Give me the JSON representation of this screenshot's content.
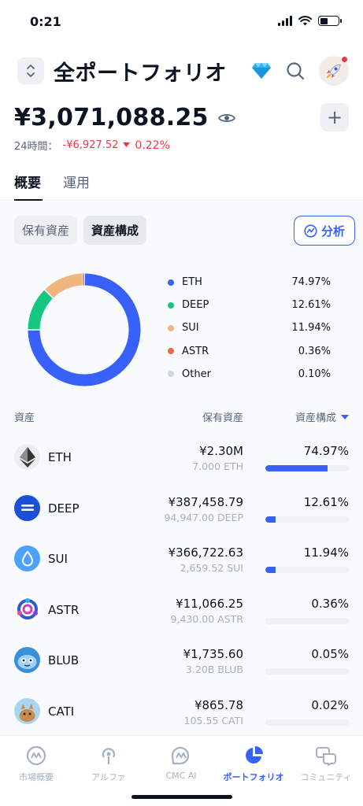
{
  "status": {
    "time": "0:21"
  },
  "header": {
    "title": "全ポートフォリオ"
  },
  "balance": {
    "amount": "¥3,071,088.25",
    "change_label": "24時間：",
    "change_value": "-¥6,927.52",
    "change_pct": "0.22%"
  },
  "tabs": [
    {
      "label": "概要"
    },
    {
      "label": "運用"
    }
  ],
  "segment": [
    {
      "label": "保有資産"
    },
    {
      "label": "資産構成"
    }
  ],
  "analyze_label": "分析",
  "colors": {
    "accent": "#3861fb",
    "negative": "#ea3943"
  },
  "chart_data": {
    "type": "pie",
    "categories": [
      "ETH",
      "DEEP",
      "SUI",
      "ASTR",
      "Other"
    ],
    "values": [
      74.97,
      12.61,
      11.94,
      0.36,
      0.1
    ],
    "labels": [
      "74.97%",
      "12.61%",
      "11.94%",
      "0.36%",
      "0.10%"
    ],
    "colors": [
      "#3861fb",
      "#16c784",
      "#f0b67e",
      "#ea6a47",
      "#cfd6e4"
    ]
  },
  "table": {
    "headers": {
      "asset": "資産",
      "holdings": "保有資産",
      "allocation": "資産構成"
    },
    "rows": [
      {
        "symbol": "ETH",
        "value": "¥2.30M",
        "holding": "7.000 ETH",
        "share": "74.97%",
        "share_num": 74.97,
        "icon": "eth-icon"
      },
      {
        "symbol": "DEEP",
        "value": "¥387,458.79",
        "holding": "94,947.00 DEEP",
        "share": "12.61%",
        "share_num": 12.61,
        "icon": "deep-icon"
      },
      {
        "symbol": "SUI",
        "value": "¥366,722.63",
        "holding": "2,659.52 SUI",
        "share": "11.94%",
        "share_num": 11.94,
        "icon": "sui-icon"
      },
      {
        "symbol": "ASTR",
        "value": "¥11,066.25",
        "holding": "9,430.00 ASTR",
        "share": "0.36%",
        "share_num": 0.36,
        "icon": "astr-icon"
      },
      {
        "symbol": "BLUB",
        "value": "¥1,735.60",
        "holding": "3.20B BLUB",
        "share": "0.05%",
        "share_num": 0.05,
        "icon": "blub-icon"
      },
      {
        "symbol": "CATI",
        "value": "¥865.78",
        "holding": "105.55 CATI",
        "share": "0.02%",
        "share_num": 0.02,
        "icon": "cati-icon"
      }
    ]
  },
  "nav": [
    {
      "label": "市場概要",
      "icon": "market-icon"
    },
    {
      "label": "アルファ",
      "icon": "alpha-icon"
    },
    {
      "label": "CMC AI",
      "icon": "cmc-ai-icon"
    },
    {
      "label": "ポートフォリオ",
      "icon": "portfolio-icon"
    },
    {
      "label": "コミュニティ",
      "icon": "community-icon"
    }
  ]
}
